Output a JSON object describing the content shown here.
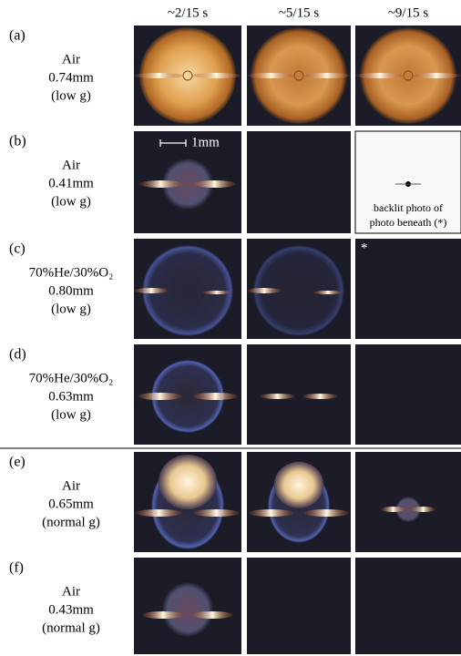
{
  "columns": [
    "~2/15 s",
    "~5/15 s",
    "~9/15 s"
  ],
  "rows": [
    {
      "letter": "(a)",
      "lines": [
        "Air",
        "0.74mm",
        "(low g)"
      ]
    },
    {
      "letter": "(b)",
      "lines": [
        "Air",
        "0.41mm",
        "(low g)"
      ]
    },
    {
      "letter": "(c)",
      "lines": [
        "70%He/30%O₂",
        "0.80mm",
        "(low g)"
      ]
    },
    {
      "letter": "(d)",
      "lines": [
        "70%He/30%O₂",
        "0.63mm",
        "(low g)"
      ]
    },
    {
      "letter": "(e)",
      "lines": [
        "Air",
        "0.65mm",
        "(normal g)"
      ]
    },
    {
      "letter": "(f)",
      "lines": [
        "Air",
        "0.43mm",
        "(normal g)"
      ]
    }
  ],
  "annotations": {
    "scale": "1mm",
    "backlit": [
      "backlit photo of",
      "photo beneath (*)"
    ],
    "asterisk": "*"
  }
}
